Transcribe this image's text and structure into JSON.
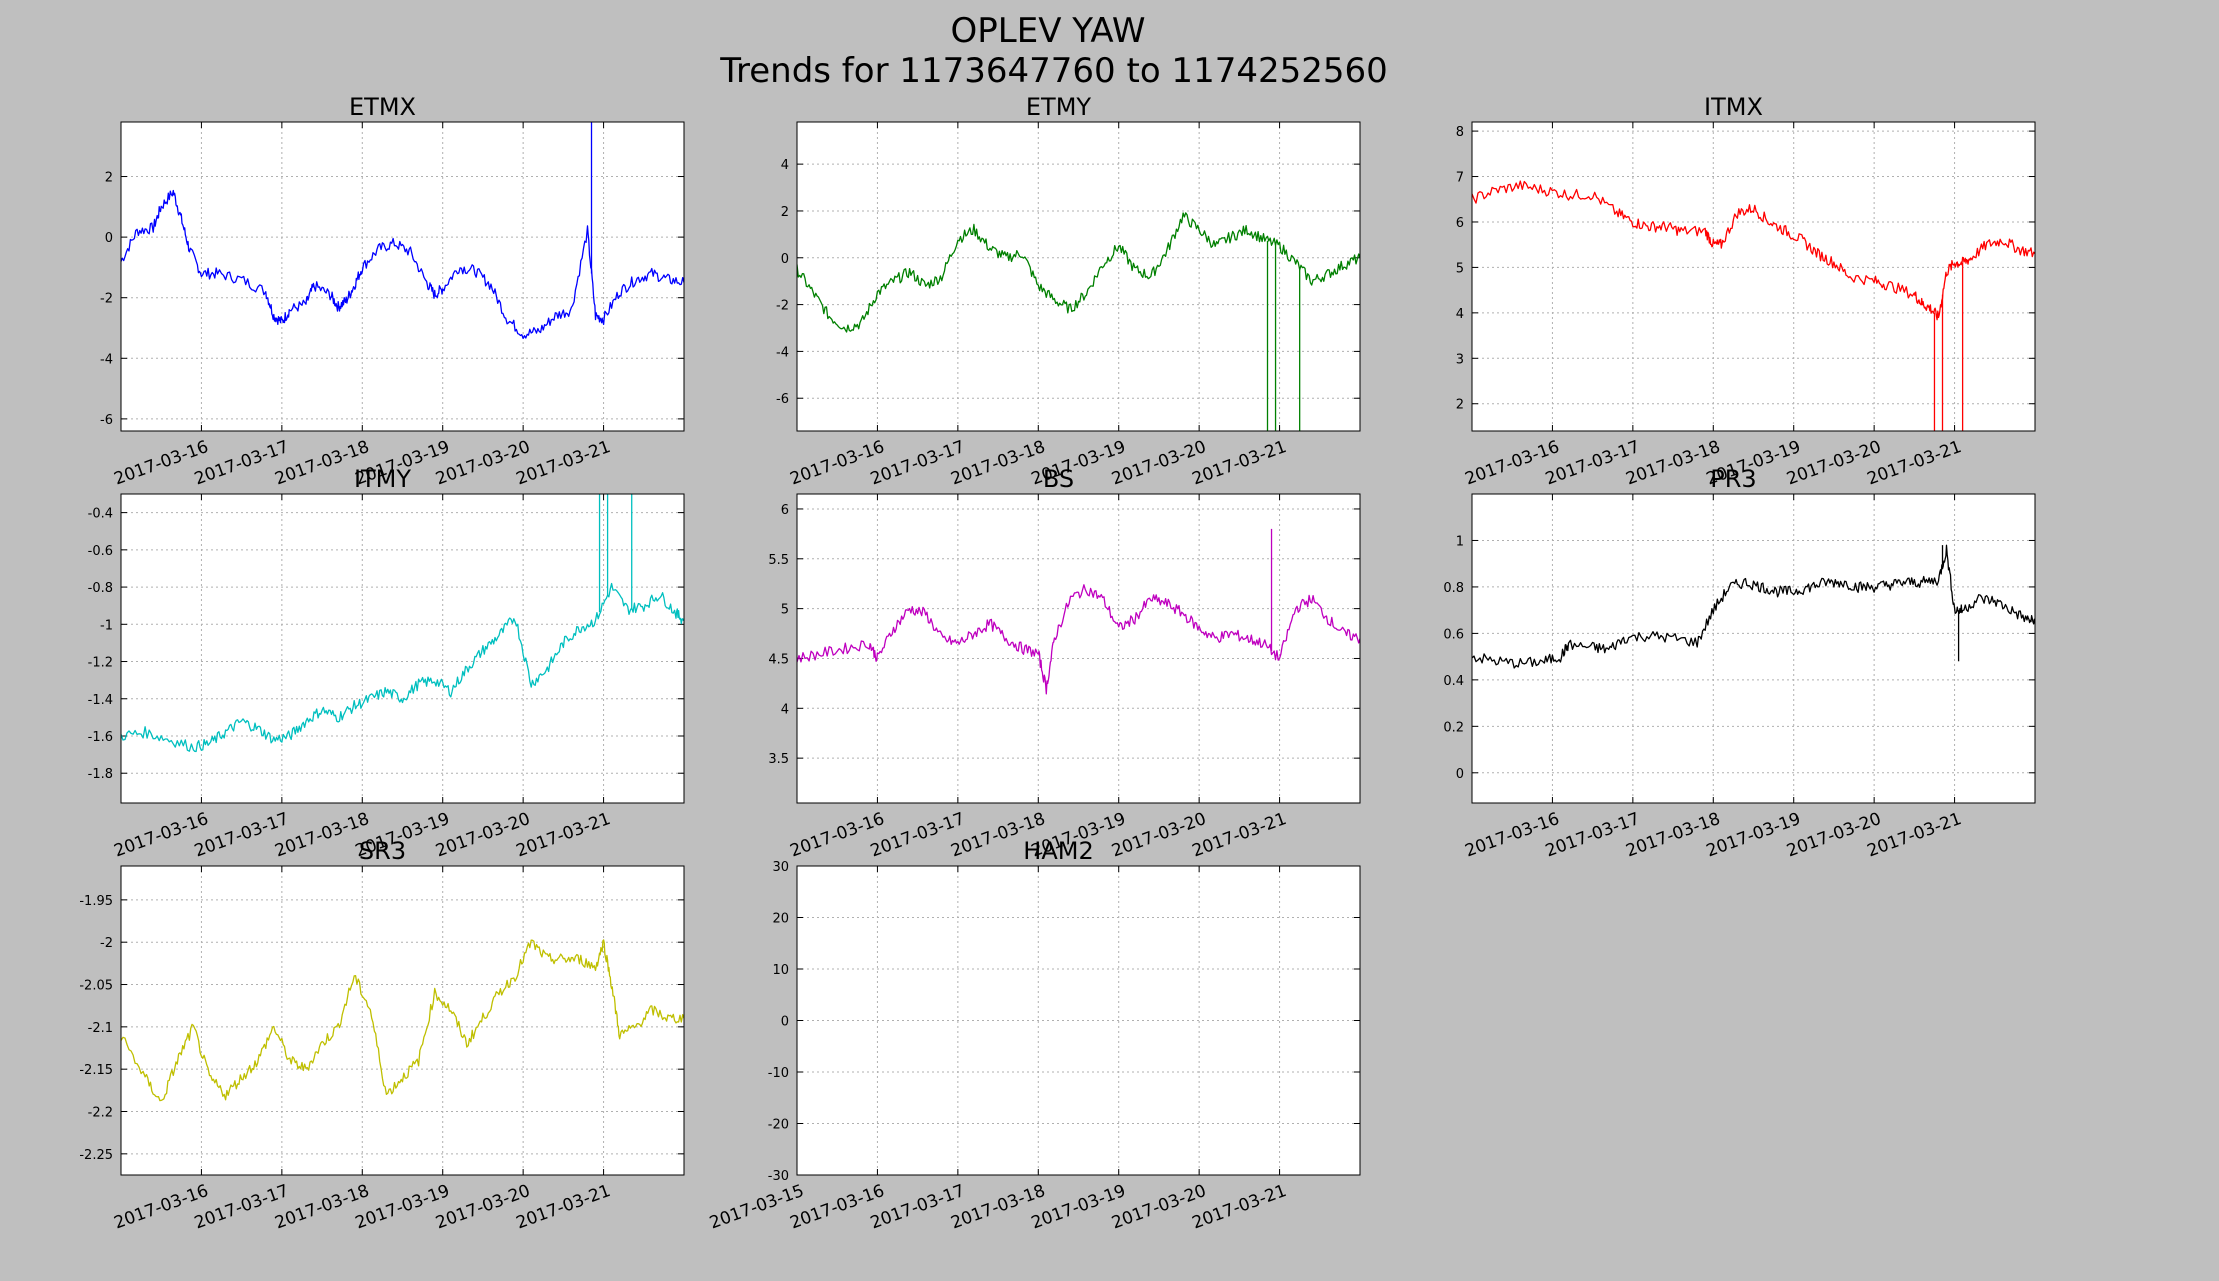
{
  "figure": {
    "title_line1": "OPLEV YAW",
    "title_line2": "Trends for 1173647760 to 1174252560",
    "background": "#bfbfbf"
  },
  "chart_data": [
    {
      "type": "line",
      "title": "ETMX",
      "color": "#0000ff",
      "xlim": [
        0,
        7
      ],
      "ylim": [
        -6.4,
        3.8
      ],
      "yticks": [
        -6,
        -4,
        -2,
        0,
        2
      ],
      "xtick_labels": [
        "2017-03-16",
        "2017-03-17",
        "2017-03-18",
        "2017-03-19",
        "2017-03-20",
        "2017-03-21"
      ],
      "xtick_days": [
        1,
        2,
        3,
        4,
        5,
        6
      ],
      "series": [
        {
          "x": [
            0.0,
            0.2,
            0.4,
            0.5,
            0.65,
            0.75,
            0.85,
            1.0,
            1.2,
            1.5,
            1.8,
            1.9,
            2.0,
            2.1,
            2.3,
            2.4,
            2.6,
            2.7,
            2.8,
            2.9,
            3.0,
            3.2,
            3.4,
            3.6,
            3.8,
            3.9,
            4.0,
            4.2,
            4.4,
            4.6,
            4.8,
            5.0,
            5.2,
            5.4,
            5.6,
            5.8,
            5.9,
            6.0,
            6.2,
            6.4,
            6.6,
            6.8,
            7.0
          ],
          "y": [
            -0.8,
            0.2,
            0.3,
            1.0,
            1.5,
            0.6,
            -0.4,
            -1.2,
            -1.2,
            -1.4,
            -1.8,
            -2.6,
            -2.8,
            -2.4,
            -2.2,
            -1.6,
            -1.9,
            -2.3,
            -2.1,
            -1.6,
            -1.0,
            -0.4,
            -0.2,
            -0.5,
            -1.5,
            -1.9,
            -1.7,
            -1.0,
            -1.1,
            -1.6,
            -2.7,
            -3.2,
            -3.1,
            -2.6,
            -2.4,
            0.2,
            -2.6,
            -2.7,
            -1.8,
            -1.4,
            -1.2,
            -1.4,
            -1.5
          ]
        }
      ],
      "spikes": [
        {
          "x": 5.85,
          "y": 3.8
        }
      ]
    },
    {
      "type": "line",
      "title": "ETMY",
      "color": "#008000",
      "xlim": [
        0,
        7
      ],
      "ylim": [
        -7.4,
        5.8
      ],
      "yticks": [
        -6,
        -4,
        -2,
        0,
        2,
        4
      ],
      "xtick_labels": [
        "2017-03-16",
        "2017-03-17",
        "2017-03-18",
        "2017-03-19",
        "2017-03-20",
        "2017-03-21"
      ],
      "xtick_days": [
        1,
        2,
        3,
        4,
        5,
        6
      ],
      "series": [
        {
          "x": [
            0.0,
            0.2,
            0.4,
            0.6,
            0.8,
            1.0,
            1.2,
            1.4,
            1.6,
            1.8,
            2.0,
            2.2,
            2.4,
            2.6,
            2.8,
            3.0,
            3.2,
            3.4,
            3.6,
            3.8,
            4.0,
            4.2,
            4.4,
            4.6,
            4.8,
            5.0,
            5.2,
            5.4,
            5.6,
            5.8,
            6.0,
            6.2,
            6.4,
            6.6,
            6.8,
            7.0
          ],
          "y": [
            -0.5,
            -1.5,
            -2.5,
            -3.0,
            -2.8,
            -1.5,
            -1.0,
            -0.6,
            -1.2,
            -0.8,
            0.8,
            1.2,
            0.4,
            0.0,
            0.2,
            -1.2,
            -1.8,
            -2.2,
            -1.5,
            -0.3,
            0.5,
            -0.5,
            -0.8,
            0.3,
            1.8,
            1.2,
            0.5,
            0.9,
            1.2,
            0.8,
            0.5,
            -0.2,
            -1.0,
            -0.7,
            -0.3,
            0.0
          ]
        }
      ],
      "spikes": [
        {
          "x": 5.85,
          "y": -7.4
        },
        {
          "x": 5.95,
          "y": -7.4
        },
        {
          "x": 6.25,
          "y": -7.4
        }
      ]
    },
    {
      "type": "line",
      "title": "ITMX",
      "color": "#ff0000",
      "xlim": [
        0,
        7
      ],
      "ylim": [
        1.4,
        8.2
      ],
      "yticks": [
        2,
        3,
        4,
        5,
        6,
        7,
        8
      ],
      "xtick_labels": [
        "2017-03-16",
        "2017-03-17",
        "2017-03-18",
        "2017-03-19",
        "2017-03-20",
        "2017-03-21"
      ],
      "xtick_days": [
        1,
        2,
        3,
        4,
        5,
        6
      ],
      "series": [
        {
          "x": [
            0.0,
            0.3,
            0.6,
            0.9,
            1.2,
            1.5,
            1.8,
            2.0,
            2.2,
            2.4,
            2.6,
            2.9,
            3.0,
            3.1,
            3.3,
            3.5,
            3.7,
            3.9,
            4.1,
            4.3,
            4.5,
            4.7,
            5.0,
            5.2,
            5.5,
            5.6,
            5.7,
            5.8,
            5.9,
            6.0,
            6.1,
            6.2,
            6.4,
            6.6,
            6.8,
            7.0
          ],
          "y": [
            6.5,
            6.7,
            6.8,
            6.7,
            6.6,
            6.6,
            6.2,
            6.0,
            5.9,
            5.9,
            5.8,
            5.8,
            5.5,
            5.5,
            6.2,
            6.3,
            6.0,
            5.8,
            5.6,
            5.3,
            5.1,
            4.8,
            4.7,
            4.6,
            4.4,
            4.2,
            4.1,
            3.9,
            4.9,
            5.1,
            5.1,
            5.2,
            5.5,
            5.6,
            5.4,
            5.3
          ]
        }
      ],
      "spikes": [
        {
          "x": 5.75,
          "y": 1.4
        },
        {
          "x": 5.85,
          "y": 1.4
        },
        {
          "x": 6.1,
          "y": 1.4
        }
      ]
    },
    {
      "type": "line",
      "title": "ITMY",
      "color": "#00bfbf",
      "xlim": [
        0,
        7
      ],
      "ylim": [
        -1.96,
        -0.3
      ],
      "yticks": [
        -1.8,
        -1.6,
        -1.4,
        -1.2,
        -1.0,
        -0.8,
        -0.6,
        -0.4
      ],
      "xtick_labels": [
        "2017-03-16",
        "2017-03-17",
        "2017-03-18",
        "2017-03-19",
        "2017-03-20",
        "2017-03-21"
      ],
      "xtick_days": [
        1,
        2,
        3,
        4,
        5,
        6
      ],
      "series": [
        {
          "x": [
            0.0,
            0.3,
            0.6,
            0.9,
            1.1,
            1.3,
            1.5,
            1.7,
            1.9,
            2.1,
            2.3,
            2.5,
            2.7,
            2.9,
            3.1,
            3.3,
            3.5,
            3.7,
            3.9,
            4.1,
            4.3,
            4.5,
            4.7,
            4.9,
            5.1,
            5.3,
            5.5,
            5.7,
            5.9,
            6.1,
            6.3,
            6.5,
            6.7,
            6.9,
            7.0
          ],
          "y": [
            -1.6,
            -1.58,
            -1.62,
            -1.66,
            -1.64,
            -1.58,
            -1.52,
            -1.56,
            -1.62,
            -1.6,
            -1.52,
            -1.46,
            -1.5,
            -1.44,
            -1.4,
            -1.36,
            -1.4,
            -1.32,
            -1.3,
            -1.36,
            -1.24,
            -1.14,
            -1.06,
            -0.96,
            -1.32,
            -1.24,
            -1.1,
            -1.02,
            -0.98,
            -0.8,
            -0.92,
            -0.9,
            -0.84,
            -0.94,
            -0.98
          ]
        }
      ],
      "spikes": [
        {
          "x": 5.95,
          "y": -0.3
        },
        {
          "x": 6.05,
          "y": -0.3
        },
        {
          "x": 6.35,
          "y": -0.3
        }
      ]
    },
    {
      "type": "line",
      "title": "BS",
      "color": "#bf00bf",
      "xlim": [
        0,
        7
      ],
      "ylim": [
        3.05,
        6.15
      ],
      "yticks": [
        3.5,
        4.0,
        4.5,
        5.0,
        5.5,
        6.0
      ],
      "xtick_labels": [
        "2017-03-16",
        "2017-03-17",
        "2017-03-18",
        "2017-03-19",
        "2017-03-20",
        "2017-03-21"
      ],
      "xtick_days": [
        1,
        2,
        3,
        4,
        5,
        6
      ],
      "series": [
        {
          "x": [
            0.0,
            0.3,
            0.6,
            0.9,
            1.0,
            1.2,
            1.4,
            1.6,
            1.8,
            2.0,
            2.2,
            2.4,
            2.6,
            2.8,
            3.0,
            3.1,
            3.2,
            3.4,
            3.6,
            3.8,
            4.0,
            4.2,
            4.4,
            4.6,
            4.8,
            5.0,
            5.2,
            5.4,
            5.6,
            5.8,
            6.0,
            6.2,
            6.4,
            6.6,
            6.8,
            7.0
          ],
          "y": [
            4.5,
            4.55,
            4.6,
            4.65,
            4.5,
            4.8,
            5.0,
            4.95,
            4.7,
            4.65,
            4.75,
            4.85,
            4.7,
            4.6,
            4.55,
            4.2,
            4.7,
            5.1,
            5.2,
            5.1,
            4.8,
            4.9,
            5.1,
            5.05,
            4.95,
            4.8,
            4.7,
            4.75,
            4.7,
            4.65,
            4.5,
            5.0,
            5.1,
            4.9,
            4.75,
            4.7
          ]
        }
      ],
      "spikes": [
        {
          "x": 5.9,
          "y": 5.8
        }
      ]
    },
    {
      "type": "line",
      "title": "PR3",
      "color": "#000000",
      "xlim": [
        0,
        7
      ],
      "ylim": [
        -0.13,
        1.2
      ],
      "yticks": [
        0.0,
        0.2,
        0.4,
        0.6,
        0.8,
        1.0
      ],
      "xtick_labels": [
        "2017-03-16",
        "2017-03-17",
        "2017-03-18",
        "2017-03-19",
        "2017-03-20",
        "2017-03-21"
      ],
      "xtick_days": [
        1,
        2,
        3,
        4,
        5,
        6
      ],
      "series": [
        {
          "x": [
            0.0,
            0.3,
            0.6,
            0.9,
            1.1,
            1.2,
            1.5,
            1.7,
            1.9,
            2.2,
            2.5,
            2.8,
            3.0,
            3.2,
            3.4,
            3.6,
            3.8,
            4.0,
            4.2,
            4.4,
            4.6,
            4.8,
            5.0,
            5.2,
            5.4,
            5.6,
            5.8,
            5.9,
            6.0,
            6.1,
            6.3,
            6.5,
            6.7,
            6.9,
            7.0
          ],
          "y": [
            0.5,
            0.48,
            0.47,
            0.48,
            0.5,
            0.55,
            0.54,
            0.53,
            0.58,
            0.59,
            0.58,
            0.56,
            0.7,
            0.8,
            0.82,
            0.8,
            0.78,
            0.78,
            0.8,
            0.82,
            0.82,
            0.8,
            0.8,
            0.81,
            0.82,
            0.82,
            0.83,
            0.96,
            0.7,
            0.7,
            0.75,
            0.74,
            0.7,
            0.66,
            0.65
          ]
        }
      ],
      "spikes": [
        {
          "x": 5.85,
          "y": 0.98
        },
        {
          "x": 6.05,
          "y": 0.48
        }
      ]
    },
    {
      "type": "line",
      "title": "SR3",
      "color": "#bfbf00",
      "xlim": [
        0,
        7
      ],
      "ylim": [
        -2.275,
        -1.91
      ],
      "yticks": [
        -2.25,
        -2.2,
        -2.15,
        -2.1,
        -2.05,
        -2.0,
        -1.95
      ],
      "xtick_labels": [
        "2017-03-16",
        "2017-03-17",
        "2017-03-18",
        "2017-03-19",
        "2017-03-20",
        "2017-03-21"
      ],
      "xtick_days": [
        1,
        2,
        3,
        4,
        5,
        6
      ],
      "series": [
        {
          "x": [
            0.0,
            0.3,
            0.5,
            0.7,
            0.9,
            1.1,
            1.3,
            1.5,
            1.7,
            1.9,
            2.1,
            2.3,
            2.5,
            2.7,
            2.9,
            3.1,
            3.3,
            3.5,
            3.7,
            3.9,
            4.1,
            4.3,
            4.5,
            4.7,
            4.9,
            5.1,
            5.3,
            5.5,
            5.7,
            5.9,
            6.0,
            6.1,
            6.2,
            6.4,
            6.6,
            6.8,
            7.0
          ],
          "y": [
            -2.11,
            -2.16,
            -2.19,
            -2.14,
            -2.1,
            -2.16,
            -2.18,
            -2.16,
            -2.14,
            -2.1,
            -2.14,
            -2.15,
            -2.12,
            -2.1,
            -2.04,
            -2.08,
            -2.18,
            -2.16,
            -2.14,
            -2.06,
            -2.08,
            -2.12,
            -2.09,
            -2.06,
            -2.04,
            -2.0,
            -2.02,
            -2.02,
            -2.02,
            -2.03,
            -2.0,
            -2.05,
            -2.11,
            -2.1,
            -2.08,
            -2.09,
            -2.09
          ]
        }
      ],
      "spikes": []
    },
    {
      "type": "line",
      "title": "HAM2",
      "color": "#000000",
      "xlim": [
        0,
        7
      ],
      "ylim": [
        -30,
        30
      ],
      "yticks": [
        -30,
        -20,
        -10,
        0,
        10,
        20,
        30
      ],
      "xtick_labels": [
        "2017-03-15",
        "2017-03-16",
        "2017-03-17",
        "2017-03-18",
        "2017-03-19",
        "2017-03-20",
        "2017-03-21"
      ],
      "xtick_days": [
        0,
        1,
        2,
        3,
        4,
        5,
        6
      ],
      "series": [],
      "spikes": []
    }
  ]
}
